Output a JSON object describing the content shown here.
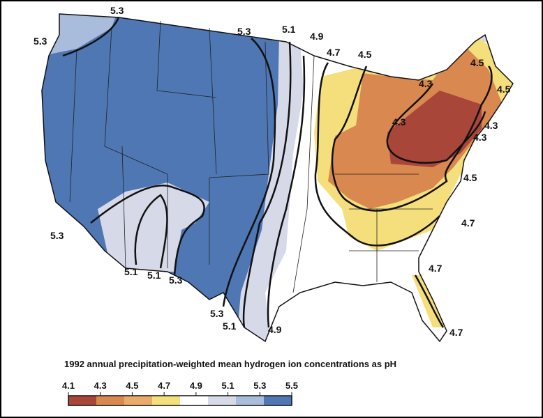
{
  "map": {
    "caption": "1992 annual precipitation-weighted mean hydrogen ion concentrations as pH",
    "contour_labels": [
      "5.3",
      "5.3",
      "5.3",
      "5.1",
      "4.9",
      "4.7",
      "4.5",
      "4.5",
      "4.3",
      "4.5",
      "4.3",
      "4.3",
      "4.3",
      "4.5",
      "5.3",
      "4.7",
      "5.1",
      "5.1",
      "5.3",
      "4.7",
      "5.3",
      "5.1",
      "4.9",
      "4.7"
    ],
    "legend": {
      "ticks": [
        4.1,
        4.3,
        4.5,
        4.7,
        4.9,
        5.1,
        5.3,
        5.5
      ],
      "colors": [
        "#a8463a",
        "#d9884f",
        "#eaaa6a",
        "#f4df7c",
        "#ffffff",
        "#d6d9e8",
        "#a9bcdc",
        "#4e77b4"
      ]
    }
  }
}
